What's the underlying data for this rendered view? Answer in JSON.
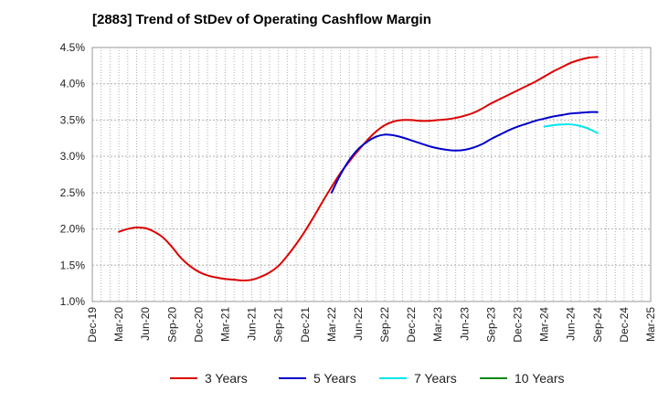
{
  "chart_data": {
    "type": "line",
    "title": "[2883]  Trend of StDev of Operating Cashflow Margin",
    "xlabel": "",
    "ylabel": "",
    "x_ticks": [
      "Dec-19",
      "Mar-20",
      "Jun-20",
      "Sep-20",
      "Dec-20",
      "Mar-21",
      "Jun-21",
      "Sep-21",
      "Dec-21",
      "Mar-22",
      "Jun-22",
      "Sep-22",
      "Dec-22",
      "Mar-23",
      "Jun-23",
      "Sep-23",
      "Dec-23",
      "Mar-24",
      "Jun-24",
      "Sep-24",
      "Dec-24",
      "Mar-25"
    ],
    "y_ticks": [
      "1.0%",
      "1.5%",
      "2.0%",
      "2.5%",
      "3.0%",
      "3.5%",
      "4.0%",
      "4.5%"
    ],
    "ylim": [
      1.0,
      4.5
    ],
    "y_unit": "%",
    "grid": true,
    "legend_position": "bottom",
    "series": [
      {
        "name": "3 Years",
        "color": "#dd0000",
        "x": [
          "Mar-20",
          "Apr-20",
          "May-20",
          "Jun-20",
          "Jul-20",
          "Aug-20",
          "Sep-20",
          "Oct-20",
          "Nov-20",
          "Dec-20",
          "Jan-21",
          "Feb-21",
          "Mar-21",
          "Apr-21",
          "May-21",
          "Jun-21",
          "Jul-21",
          "Aug-21",
          "Sep-21",
          "Oct-21",
          "Nov-21",
          "Dec-21",
          "Jan-22",
          "Feb-22",
          "Mar-22",
          "Apr-22",
          "May-22",
          "Jun-22",
          "Jul-22",
          "Aug-22",
          "Sep-22",
          "Oct-22",
          "Nov-22",
          "Dec-22",
          "Jan-23",
          "Feb-23",
          "Mar-23",
          "Apr-23",
          "May-23",
          "Jun-23",
          "Jul-23",
          "Aug-23",
          "Sep-23",
          "Oct-23",
          "Nov-23",
          "Dec-23",
          "Jan-24",
          "Feb-24",
          "Mar-24",
          "Apr-24",
          "May-24",
          "Jun-24",
          "Jul-24",
          "Aug-24",
          "Sep-24"
        ],
        "values": [
          1.96,
          2.0,
          2.02,
          2.01,
          1.96,
          1.88,
          1.75,
          1.6,
          1.49,
          1.41,
          1.36,
          1.33,
          1.31,
          1.3,
          1.29,
          1.3,
          1.34,
          1.4,
          1.49,
          1.63,
          1.79,
          1.97,
          2.17,
          2.38,
          2.58,
          2.77,
          2.93,
          3.08,
          3.22,
          3.34,
          3.43,
          3.48,
          3.5,
          3.5,
          3.49,
          3.49,
          3.5,
          3.51,
          3.53,
          3.56,
          3.6,
          3.66,
          3.73,
          3.79,
          3.85,
          3.91,
          3.97,
          4.03,
          4.1,
          4.17,
          4.23,
          4.29,
          4.33,
          4.36,
          4.37
        ]
      },
      {
        "name": "5 Years",
        "color": "#0000cc",
        "x": [
          "Mar-22",
          "Apr-22",
          "May-22",
          "Jun-22",
          "Jul-22",
          "Aug-22",
          "Sep-22",
          "Oct-22",
          "Nov-22",
          "Dec-22",
          "Jan-23",
          "Feb-23",
          "Mar-23",
          "Apr-23",
          "May-23",
          "Jun-23",
          "Jul-23",
          "Aug-23",
          "Sep-23",
          "Oct-23",
          "Nov-23",
          "Dec-23",
          "Jan-24",
          "Feb-24",
          "Mar-24",
          "Apr-24",
          "May-24",
          "Jun-24",
          "Jul-24",
          "Aug-24",
          "Sep-24"
        ],
        "values": [
          2.5,
          2.75,
          2.95,
          3.1,
          3.2,
          3.27,
          3.3,
          3.29,
          3.26,
          3.22,
          3.18,
          3.14,
          3.11,
          3.09,
          3.08,
          3.09,
          3.12,
          3.17,
          3.24,
          3.3,
          3.36,
          3.41,
          3.45,
          3.49,
          3.52,
          3.55,
          3.57,
          3.59,
          3.6,
          3.61,
          3.61
        ]
      },
      {
        "name": "7 Years",
        "color": "#00e5ee",
        "x": [
          "Mar-24",
          "Apr-24",
          "May-24",
          "Jun-24",
          "Jul-24",
          "Aug-24",
          "Sep-24"
        ],
        "values": [
          3.41,
          3.43,
          3.44,
          3.44,
          3.42,
          3.38,
          3.32
        ]
      },
      {
        "name": "10 Years",
        "color": "#118811",
        "x": [],
        "values": []
      }
    ]
  }
}
